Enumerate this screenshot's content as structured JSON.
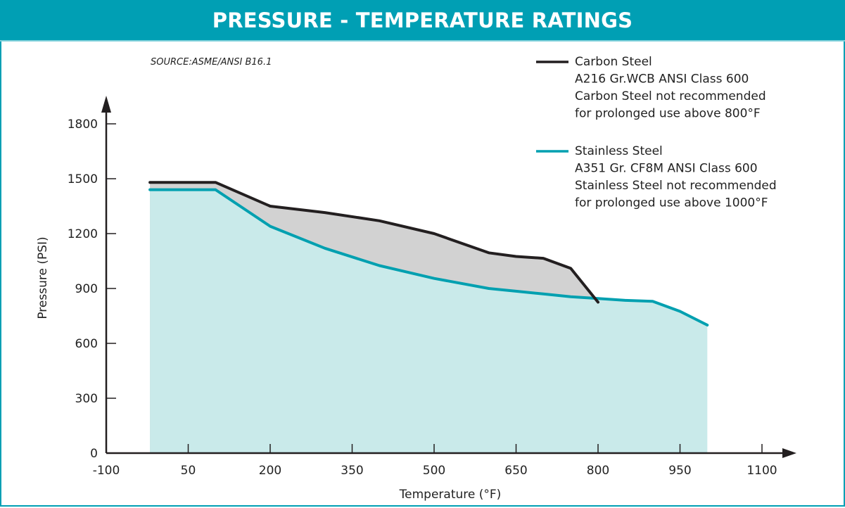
{
  "header": {
    "title": "PRESSURE - TEMPERATURE RATINGS"
  },
  "colors": {
    "brand": "#009fb4",
    "carbon_line": "#231f20",
    "carbon_fill": "#d2d2d2",
    "stainless_line": "#00a0b0",
    "stainless_fill": "#c9eaea"
  },
  "chart_data": {
    "type": "area",
    "title": "PRESSURE - TEMPERATURE RATINGS",
    "source": "SOURCE:ASME/ANSI B16.1",
    "xlabel": "Temperature (°F)",
    "ylabel": "Pressure (PSI)",
    "xlim": [
      -100,
      1100
    ],
    "ylim": [
      0,
      1800
    ],
    "xticks": [
      -100,
      50,
      200,
      350,
      500,
      650,
      800,
      950,
      1100
    ],
    "yticks": [
      0,
      300,
      600,
      900,
      1200,
      1500,
      1800
    ],
    "grid": false,
    "legend_position": "top-right",
    "series": [
      {
        "name": "Carbon Steel",
        "legend_lines": [
          "Carbon Steel",
          "A216 Gr.WCB ANSI Class 600",
          "Carbon Steel not recommended",
          "for prolonged use above 800°F"
        ],
        "x": [
          -20,
          100,
          200,
          300,
          400,
          500,
          600,
          650,
          700,
          750,
          800
        ],
        "y": [
          1480,
          1480,
          1350,
          1315,
          1270,
          1200,
          1095,
          1075,
          1065,
          1010,
          825
        ]
      },
      {
        "name": "Stainless Steel",
        "legend_lines": [
          "Stainless Steel",
          "A351 Gr. CF8M ANSI Class 600",
          "Stainless Steel not recommended",
          "for prolonged use above 1000°F"
        ],
        "x": [
          -20,
          100,
          200,
          300,
          400,
          500,
          600,
          650,
          700,
          750,
          800,
          850,
          900,
          950,
          1000
        ],
        "y": [
          1440,
          1440,
          1240,
          1120,
          1025,
          955,
          900,
          885,
          870,
          855,
          845,
          835,
          830,
          775,
          700
        ]
      }
    ]
  }
}
